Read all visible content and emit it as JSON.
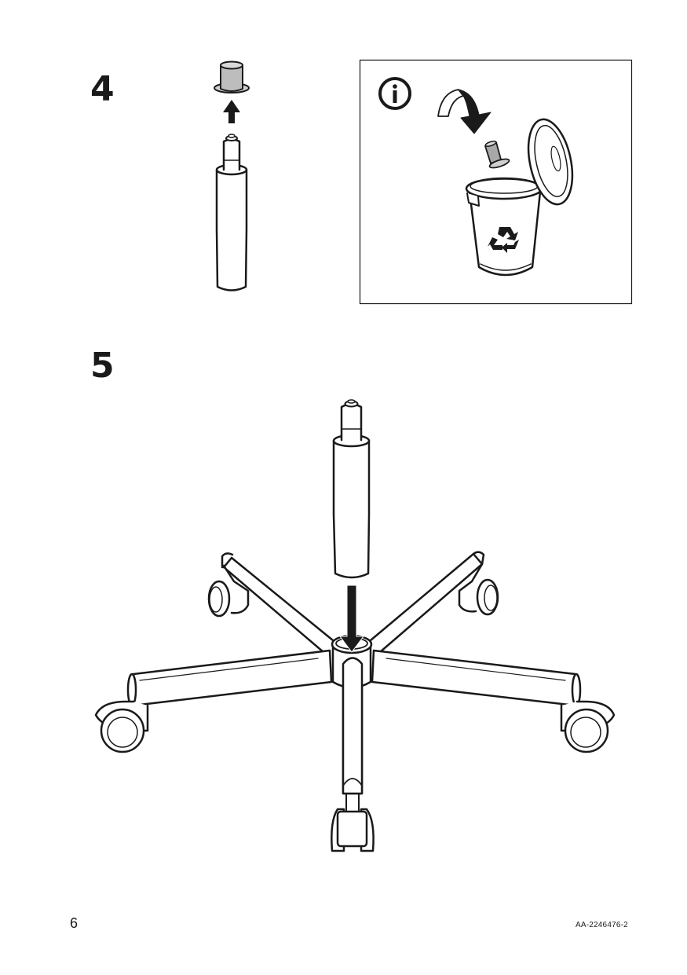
{
  "step4": {
    "number": "4"
  },
  "step5": {
    "number": "5"
  },
  "footer": {
    "page_number": "6",
    "document_code": "AA-2246476-2"
  },
  "icons": [
    "info-icon",
    "recycle-icon",
    "arrow-up-icon",
    "arrow-down-icon",
    "curved-arrow-icon"
  ]
}
